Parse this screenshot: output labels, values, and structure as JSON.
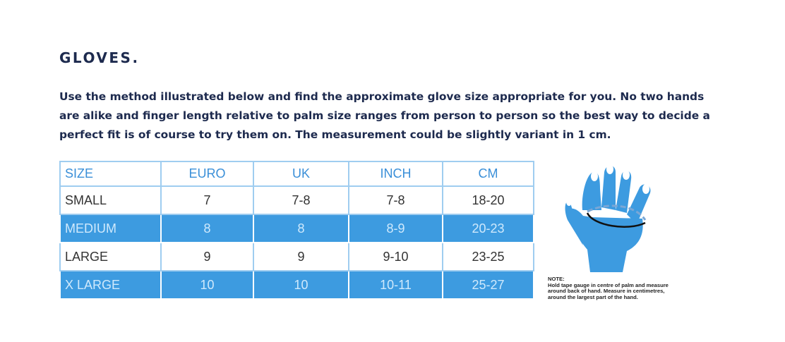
{
  "heading": "GLOVES.",
  "intro": {
    "lines": [
      "Use the method illustrated below and find the approximate glove size appropriate for you. No two hands",
      "are alike and finger length relative to palm size ranges from person to person so the best way to decide a",
      "perfect fit is of course to try them on. The measurement could be slightly variant in 1 cm."
    ]
  },
  "table": {
    "header": [
      "SIZE",
      "EURO",
      "UK",
      "INCH",
      "CM"
    ],
    "rows": [
      [
        "SMALL",
        "7",
        "7-8",
        "7-8",
        "18-20"
      ],
      [
        "MEDIUM",
        "8",
        "8",
        "8-9",
        "20-23"
      ],
      [
        "LARGE",
        "9",
        "9",
        "9-10",
        "23-25"
      ],
      [
        "X LARGE",
        "10",
        "10",
        "10-11",
        "25-27"
      ]
    ]
  },
  "note": {
    "label": "NOTE:",
    "lines": [
      "Hold tape gauge in centre of palm and measure",
      "around back of hand. Measure in centimetres,",
      "around the largest part of the hand."
    ]
  }
}
